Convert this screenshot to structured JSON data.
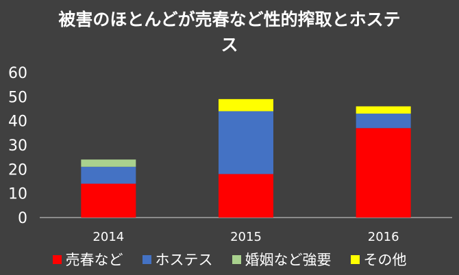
{
  "chart_data": {
    "type": "bar",
    "stacked": true,
    "title": "被害のほとんどが売春など性的搾取とホステス",
    "categories": [
      "2014",
      "2015",
      "2016"
    ],
    "ylim": [
      0,
      60
    ],
    "yticks": [
      0,
      10,
      20,
      30,
      40,
      50,
      60
    ],
    "series": [
      {
        "name": "売春など",
        "color": "#ff0000",
        "values": [
          14,
          18,
          37
        ]
      },
      {
        "name": "ホステス",
        "color": "#4472c4",
        "values": [
          7,
          26,
          6
        ]
      },
      {
        "name": "婚姻など強要",
        "color": "#a9d18e",
        "values": [
          3,
          0,
          0
        ]
      },
      {
        "name": "その他",
        "color": "#ffff00",
        "values": [
          0,
          5,
          3
        ]
      }
    ],
    "legend_position": "bottom",
    "grid": false
  },
  "colors": {
    "background": "#404040",
    "text": "#ffffff",
    "axis": "#d9d9d9"
  }
}
